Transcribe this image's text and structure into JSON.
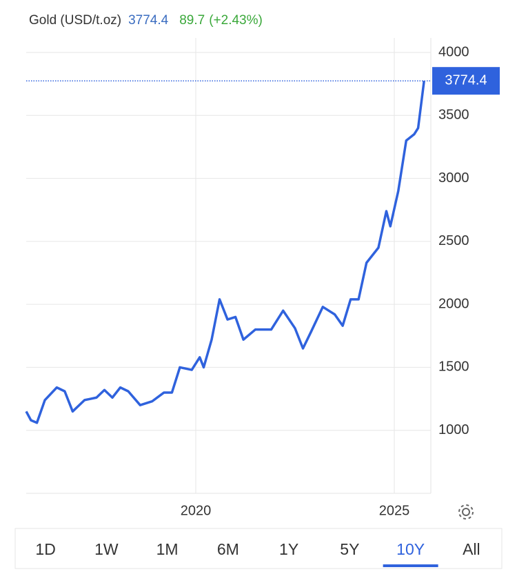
{
  "chart_data": {
    "type": "line",
    "title": "Gold (USD/t.oz)",
    "price": 3774.4,
    "change": "89.7",
    "change_percent": "(+2.43%)",
    "x": [
      2015.73,
      2015.85,
      2016.0,
      2016.2,
      2016.5,
      2016.7,
      2016.9,
      2017.2,
      2017.5,
      2017.7,
      2017.9,
      2018.1,
      2018.3,
      2018.6,
      2018.9,
      2019.2,
      2019.4,
      2019.6,
      2019.9,
      2020.1,
      2020.2,
      2020.4,
      2020.6,
      2020.8,
      2021.0,
      2021.2,
      2021.5,
      2021.9,
      2022.2,
      2022.5,
      2022.7,
      2022.9,
      2023.2,
      2023.5,
      2023.7,
      2023.9,
      2024.1,
      2024.3,
      2024.6,
      2024.8,
      2024.9,
      2025.1,
      2025.3,
      2025.5,
      2025.6,
      2025.75
    ],
    "series": [
      {
        "name": "Gold",
        "color": "#2f62dd",
        "values": [
          1150,
          1080,
          1060,
          1240,
          1340,
          1310,
          1150,
          1240,
          1260,
          1320,
          1260,
          1340,
          1310,
          1200,
          1230,
          1300,
          1300,
          1500,
          1480,
          1580,
          1500,
          1720,
          2040,
          1880,
          1900,
          1720,
          1800,
          1800,
          1950,
          1810,
          1650,
          1780,
          1980,
          1920,
          1830,
          2040,
          2040,
          2330,
          2450,
          2740,
          2620,
          2900,
          3300,
          3350,
          3400,
          3774.4
        ]
      }
    ],
    "xlim": [
      2015.73,
      2025.92
    ],
    "xticks": [
      2020,
      2025
    ],
    "ylim": [
      500,
      4000
    ],
    "yticks": [
      1000,
      1500,
      2000,
      2500,
      3000,
      3500,
      4000
    ],
    "grid": true,
    "ranges": [
      "1D",
      "1W",
      "1M",
      "6M",
      "1Y",
      "5Y",
      "10Y",
      "All"
    ],
    "active_range": 6
  }
}
